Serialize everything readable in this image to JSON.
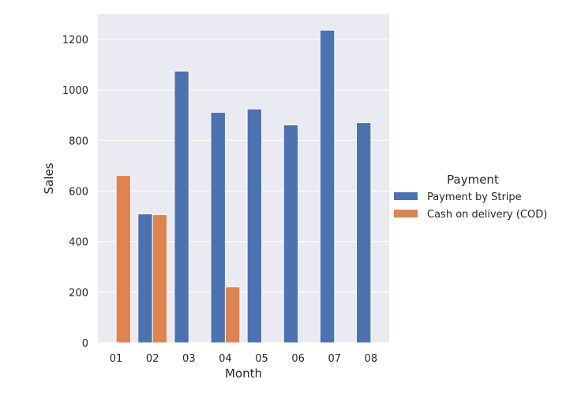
{
  "chart_data": {
    "type": "bar",
    "xlabel": "Month",
    "ylabel": "Sales",
    "categories": [
      "01",
      "02",
      "03",
      "04",
      "05",
      "06",
      "07",
      "08"
    ],
    "ylim": [
      0,
      1300
    ],
    "yticks": [
      0,
      200,
      400,
      600,
      800,
      1000,
      1200
    ],
    "grid": true,
    "legend": {
      "title": "Payment",
      "placement": "right"
    },
    "series": [
      {
        "name": "Payment by Stripe",
        "color": "#4c72b0",
        "values": [
          null,
          510,
          1075,
          912,
          925,
          862,
          1237,
          871
        ]
      },
      {
        "name": "Cash on delivery (COD)",
        "color": "#dd8452",
        "values": [
          662,
          507,
          null,
          222,
          null,
          null,
          null,
          null
        ]
      }
    ]
  }
}
